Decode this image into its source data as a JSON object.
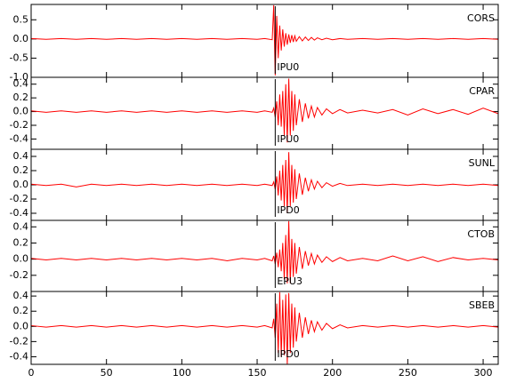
{
  "chart_data": [
    {
      "type": "line",
      "station": "CORS",
      "color": "#ff0000",
      "pick": {
        "x": 162,
        "label": "IPU0"
      },
      "x": [
        0,
        10,
        20,
        30,
        40,
        50,
        60,
        70,
        80,
        90,
        100,
        110,
        120,
        130,
        140,
        150,
        155,
        160,
        161,
        162,
        163,
        164,
        165,
        166,
        167,
        168,
        169,
        170,
        171,
        172,
        173,
        174,
        175,
        176,
        178,
        180,
        182,
        184,
        186,
        188,
        190,
        193,
        196,
        200,
        205,
        210,
        220,
        230,
        240,
        250,
        260,
        270,
        280,
        290,
        300,
        310
      ],
      "values": [
        0.01,
        -0.01,
        0.01,
        -0.01,
        0.01,
        -0.01,
        0.01,
        -0.01,
        0.01,
        -0.01,
        0.01,
        -0.01,
        0.01,
        -0.01,
        0.01,
        -0.01,
        0.01,
        -0.02,
        0.88,
        -0.95,
        0.6,
        -0.5,
        0.35,
        -0.3,
        0.25,
        -0.2,
        0.15,
        -0.15,
        0.12,
        -0.1,
        0.1,
        -0.08,
        0.08,
        -0.06,
        0.06,
        -0.05,
        0.05,
        -0.04,
        0.04,
        -0.03,
        0.03,
        -0.02,
        0.02,
        -0.02,
        0.01,
        -0.01,
        0.01,
        -0.01,
        0.01,
        -0.01,
        0.01,
        -0.01,
        0.01,
        -0.01,
        0.01,
        -0.01
      ],
      "ylim": [
        -1.0,
        0.9
      ],
      "yticks": [
        0.5,
        {
          "value": 0,
          "label": "0.0"
        },
        -0.5,
        {
          "value": -1,
          "label": "-1.0"
        }
      ]
    },
    {
      "type": "line",
      "station": "CPAR",
      "color": "#ff0000",
      "pick": {
        "x": 162,
        "label": "IPU0"
      },
      "x": [
        0,
        10,
        20,
        30,
        40,
        50,
        60,
        70,
        80,
        90,
        100,
        110,
        120,
        130,
        140,
        150,
        155,
        160,
        161,
        162,
        163,
        164,
        165,
        166,
        167,
        168,
        169,
        170,
        171,
        172,
        173,
        174,
        175,
        176,
        178,
        180,
        182,
        184,
        186,
        188,
        190,
        193,
        196,
        200,
        205,
        210,
        220,
        230,
        240,
        250,
        260,
        270,
        280,
        290,
        300,
        310
      ],
      "values": [
        0.01,
        -0.01,
        0.01,
        -0.01,
        0.01,
        -0.01,
        0.01,
        -0.01,
        0.01,
        -0.01,
        0.01,
        -0.01,
        0.01,
        -0.01,
        0.01,
        -0.01,
        0.01,
        -0.01,
        0.05,
        -0.08,
        0.15,
        -0.2,
        0.25,
        -0.22,
        0.3,
        -0.35,
        0.4,
        -0.45,
        0.48,
        -0.35,
        0.3,
        -0.28,
        0.25,
        -0.2,
        0.18,
        -0.15,
        0.12,
        -0.1,
        0.08,
        -0.08,
        0.06,
        -0.05,
        0.04,
        -0.03,
        0.03,
        -0.02,
        0.02,
        -0.02,
        0.03,
        -0.05,
        0.04,
        -0.03,
        0.03,
        -0.04,
        0.05,
        -0.03
      ],
      "ylim": [
        -0.55,
        0.5
      ],
      "yticks": [
        0.4,
        0.2,
        {
          "value": 0,
          "label": "0.0"
        },
        -0.2,
        -0.4
      ]
    },
    {
      "type": "line",
      "station": "SUNL",
      "color": "#ff0000",
      "pick": {
        "x": 162,
        "label": "IPD0"
      },
      "x": [
        0,
        10,
        20,
        30,
        40,
        50,
        60,
        70,
        80,
        90,
        100,
        110,
        120,
        130,
        140,
        150,
        155,
        160,
        161,
        162,
        163,
        164,
        165,
        166,
        167,
        168,
        169,
        170,
        171,
        172,
        173,
        174,
        175,
        176,
        178,
        180,
        182,
        184,
        186,
        188,
        190,
        193,
        196,
        200,
        205,
        210,
        220,
        230,
        240,
        250,
        260,
        270,
        280,
        290,
        300,
        310
      ],
      "values": [
        0.01,
        -0.01,
        0.01,
        -0.03,
        0.01,
        -0.01,
        0.01,
        -0.01,
        0.01,
        -0.01,
        0.01,
        -0.01,
        0.01,
        -0.01,
        0.01,
        -0.01,
        0.01,
        -0.01,
        0.04,
        -0.06,
        0.12,
        -0.15,
        0.2,
        -0.22,
        0.28,
        -0.3,
        0.35,
        -0.4,
        0.46,
        -0.3,
        0.28,
        -0.25,
        0.22,
        -0.2,
        0.16,
        -0.14,
        0.1,
        -0.09,
        0.07,
        -0.06,
        0.05,
        -0.04,
        0.03,
        -0.02,
        0.02,
        -0.01,
        0.01,
        -0.01,
        0.01,
        -0.01,
        0.01,
        -0.01,
        0.01,
        -0.01,
        0.01,
        -0.01
      ],
      "ylim": [
        -0.5,
        0.5
      ],
      "yticks": [
        0.4,
        0.2,
        {
          "value": 0,
          "label": "0.0"
        },
        -0.2,
        -0.4
      ]
    },
    {
      "type": "line",
      "station": "CTOB",
      "color": "#ff0000",
      "pick": {
        "x": 162,
        "label": "EPU3"
      },
      "x": [
        0,
        10,
        20,
        30,
        40,
        50,
        60,
        70,
        80,
        90,
        100,
        110,
        120,
        130,
        140,
        150,
        155,
        160,
        161,
        162,
        163,
        164,
        165,
        166,
        167,
        168,
        169,
        170,
        171,
        172,
        173,
        174,
        175,
        176,
        178,
        180,
        182,
        184,
        186,
        188,
        190,
        193,
        196,
        200,
        205,
        210,
        220,
        230,
        240,
        250,
        260,
        270,
        280,
        290,
        300,
        310
      ],
      "values": [
        0.01,
        -0.01,
        0.01,
        -0.01,
        0.01,
        -0.01,
        0.01,
        -0.01,
        0.01,
        -0.01,
        0.01,
        -0.01,
        0.01,
        -0.02,
        0.01,
        -0.01,
        0.01,
        -0.02,
        0.04,
        -0.06,
        0.08,
        -0.1,
        0.12,
        -0.15,
        0.2,
        -0.25,
        0.3,
        -0.3,
        0.47,
        -0.3,
        0.25,
        -0.22,
        0.2,
        -0.18,
        0.15,
        -0.12,
        0.1,
        -0.08,
        0.07,
        -0.06,
        0.05,
        -0.04,
        0.03,
        -0.03,
        0.02,
        -0.02,
        0.01,
        -0.02,
        0.04,
        -0.02,
        0.03,
        -0.03,
        0.02,
        -0.01,
        0.01,
        -0.01
      ],
      "ylim": [
        -0.4,
        0.48
      ],
      "yticks": [
        0.4,
        0.2,
        {
          "value": 0,
          "label": "0.0"
        },
        -0.2
      ]
    },
    {
      "type": "line",
      "station": "SBEB",
      "color": "#ff0000",
      "pick": {
        "x": 162,
        "label": "IPD0"
      },
      "x": [
        0,
        10,
        20,
        30,
        40,
        50,
        60,
        70,
        80,
        90,
        100,
        110,
        120,
        130,
        140,
        150,
        155,
        160,
        161,
        162,
        163,
        164,
        165,
        166,
        167,
        168,
        169,
        170,
        171,
        172,
        173,
        174,
        175,
        176,
        178,
        180,
        182,
        184,
        186,
        188,
        190,
        193,
        196,
        200,
        205,
        210,
        220,
        230,
        240,
        250,
        260,
        270,
        280,
        290,
        300,
        310
      ],
      "values": [
        0.01,
        -0.01,
        0.01,
        -0.01,
        0.01,
        -0.01,
        0.01,
        -0.01,
        0.01,
        -0.01,
        0.01,
        -0.01,
        0.01,
        -0.01,
        0.01,
        -0.01,
        0.01,
        -0.02,
        0.1,
        -0.15,
        0.3,
        -0.35,
        0.45,
        -0.4,
        0.35,
        -0.38,
        0.42,
        -0.5,
        0.44,
        -0.35,
        0.3,
        -0.28,
        0.25,
        -0.2,
        0.18,
        -0.15,
        0.12,
        -0.1,
        0.08,
        -0.07,
        0.06,
        -0.05,
        0.04,
        -0.03,
        0.02,
        -0.02,
        0.01,
        -0.01,
        0.01,
        -0.01,
        0.01,
        -0.01,
        0.01,
        -0.01,
        0.01,
        -0.01
      ],
      "ylim": [
        -0.5,
        0.46
      ],
      "yticks": [
        0.4,
        0.2,
        {
          "value": 0,
          "label": "0.0"
        },
        -0.2,
        -0.4
      ],
      "xlim": [
        0,
        310
      ],
      "xticks": [
        0,
        50,
        100,
        150,
        200,
        250,
        300
      ]
    }
  ]
}
